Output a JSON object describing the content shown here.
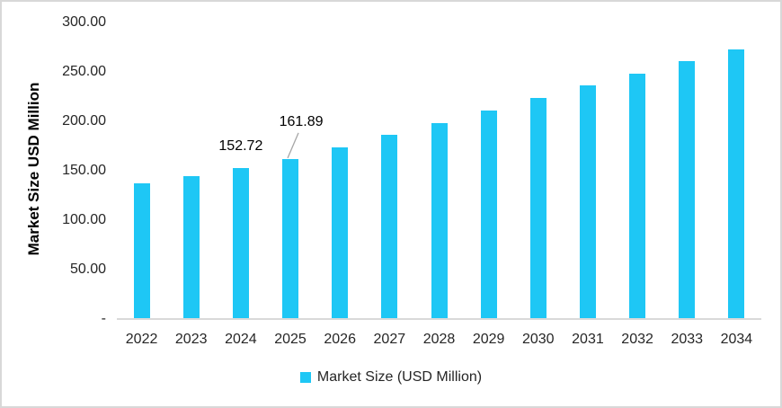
{
  "chart_data": {
    "type": "bar",
    "title": "",
    "xlabel": "",
    "ylabel": "Market Size USD Million",
    "categories": [
      "2022",
      "2023",
      "2024",
      "2025",
      "2026",
      "2027",
      "2028",
      "2029",
      "2030",
      "2031",
      "2032",
      "2033",
      "2034"
    ],
    "series": [
      {
        "name": "Market Size (USD Million)",
        "values": [
          137,
          144.5,
          152.72,
          161.89,
          174,
          186.5,
          198.5,
          211,
          223.5,
          236,
          248.5,
          260.5,
          273
        ]
      }
    ],
    "ylim": [
      0,
      300
    ],
    "ytick_interval": 50,
    "ytick_labels": [
      "-",
      "50.00",
      "100.00",
      "150.00",
      "200.00",
      "250.00",
      "300.00"
    ],
    "grid": false,
    "bar_color": "#1ec7f5",
    "axis_line_color": "#d9d9d9",
    "leader_line_color": "#a6a6a6",
    "legend": {
      "position": "bottom",
      "items": [
        {
          "label": "Market Size (USD Million)",
          "color": "#1ec7f5"
        }
      ]
    },
    "annotations": [
      {
        "category": "2024",
        "text": "152.72",
        "leader_line": false
      },
      {
        "category": "2025",
        "text": "161.89",
        "leader_line": true
      }
    ]
  }
}
